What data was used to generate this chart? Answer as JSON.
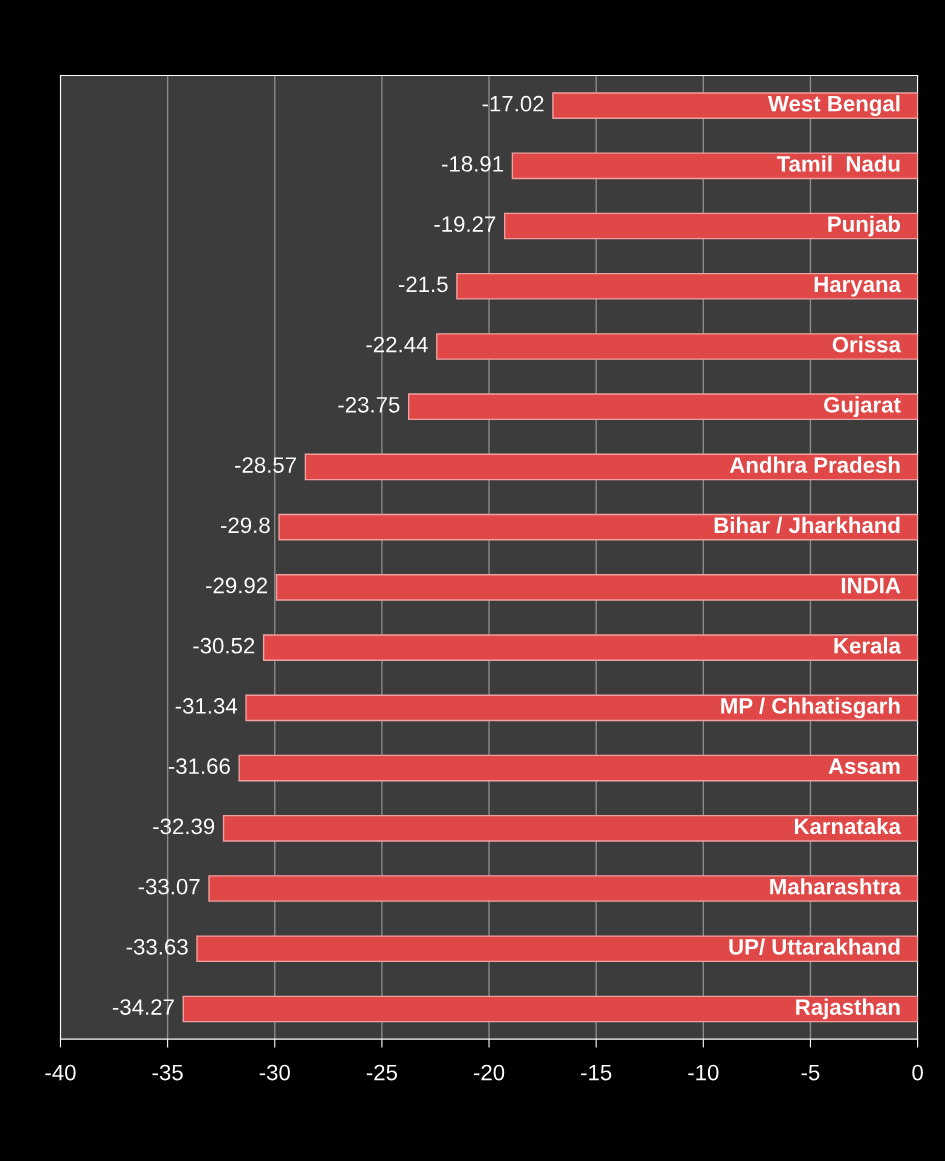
{
  "chart_data": {
    "type": "bar",
    "orientation": "horizontal",
    "categories": [
      "West Bengal",
      "Tamil  Nadu",
      "Punjab",
      "Haryana",
      "Orissa",
      "Gujarat",
      "Andhra Pradesh",
      "Bihar / Jharkhand",
      "INDIA",
      "Kerala",
      "MP / Chhatisgarh",
      "Assam",
      "Karnataka",
      "Maharashtra",
      "UP/ Uttarakhand",
      "Rajasthan"
    ],
    "values": [
      -17.02,
      -18.91,
      -19.27,
      -21.5,
      -22.44,
      -23.75,
      -28.57,
      -29.8,
      -29.92,
      -30.52,
      -31.34,
      -31.66,
      -32.39,
      -33.07,
      -33.63,
      -34.27
    ],
    "color": "#e04848",
    "xlim": [
      -40,
      0
    ],
    "xticks": [
      -40,
      -35,
      -30,
      -25,
      -20,
      -15,
      -10,
      -5,
      0
    ],
    "grid": "x",
    "data_labels": true
  }
}
